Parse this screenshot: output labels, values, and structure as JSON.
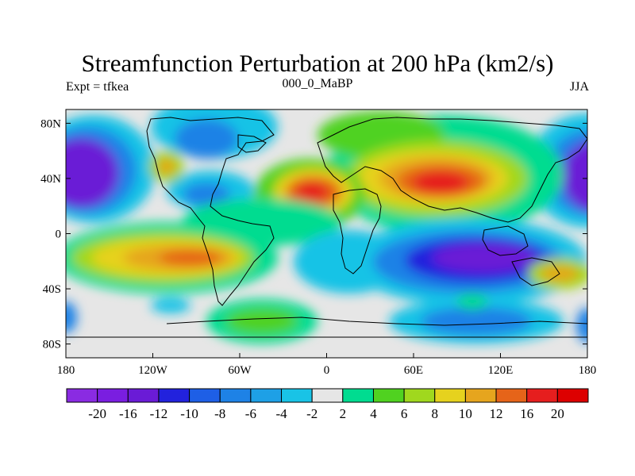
{
  "title": "Streamfunction Perturbation at 200 hPa (km2/s)",
  "subtitle_left": "Expt = tfkea",
  "subtitle_center": "000_0_MaBP",
  "subtitle_right": "JJA",
  "chart_data": {
    "type": "heatmap",
    "variable": "Streamfunction Perturbation at 200 hPa",
    "units": "km2/s",
    "x_axis": {
      "range": [
        -180,
        180
      ],
      "ticks": [
        -180,
        -120,
        -60,
        0,
        60,
        120,
        180
      ],
      "tick_labels": [
        "180",
        "120W",
        "60W",
        "0",
        "60E",
        "120E",
        "180"
      ]
    },
    "y_axis": {
      "range": [
        -90,
        90
      ],
      "ticks": [
        80,
        40,
        0,
        -40,
        -80
      ],
      "tick_labels": [
        "80N",
        "40N",
        "0",
        "40S",
        "80S"
      ]
    },
    "colorbar": {
      "labels": [
        "-20",
        "-16",
        "-12",
        "-10",
        "-8",
        "-6",
        "-4",
        "-2",
        "2",
        "4",
        "6",
        "8",
        "10",
        "12",
        "16",
        "20"
      ],
      "colors": [
        "#8a2be2",
        "#7a1ee0",
        "#6a1bd6",
        "#2222dd",
        "#1e5fe6",
        "#1e82e6",
        "#1ea0e6",
        "#19c3e6",
        "#e6e6e6",
        "#00dc90",
        "#50d220",
        "#a0d81e",
        "#e6d21e",
        "#e6a51e",
        "#e66419",
        "#e61e1e",
        "#dd0000"
      ]
    },
    "features": [
      {
        "lon": -170,
        "lat": 35,
        "value": -20
      },
      {
        "lon": 165,
        "lat": 35,
        "value": -16
      },
      {
        "lon": -105,
        "lat": 55,
        "value": -6
      },
      {
        "lon": -40,
        "lat": 60,
        "value": -6
      },
      {
        "lon": -60,
        "lat": 25,
        "value": -4
      },
      {
        "lon": -110,
        "lat": 40,
        "value": 6
      },
      {
        "lon": -10,
        "lat": 25,
        "value": 16
      },
      {
        "lon": 80,
        "lat": 30,
        "value": 20
      },
      {
        "lon": 45,
        "lat": 35,
        "value": 12
      },
      {
        "lon": 100,
        "lat": -30,
        "value": -12
      },
      {
        "lon": -120,
        "lat": -25,
        "value": 12
      },
      {
        "lon": -80,
        "lat": -30,
        "value": 8
      },
      {
        "lon": -40,
        "lat": -25,
        "value": -4
      },
      {
        "lon": 160,
        "lat": -30,
        "value": 10
      },
      {
        "lon": -30,
        "lat": -65,
        "value": 4
      },
      {
        "lon": 120,
        "lat": -65,
        "value": -6
      }
    ]
  }
}
